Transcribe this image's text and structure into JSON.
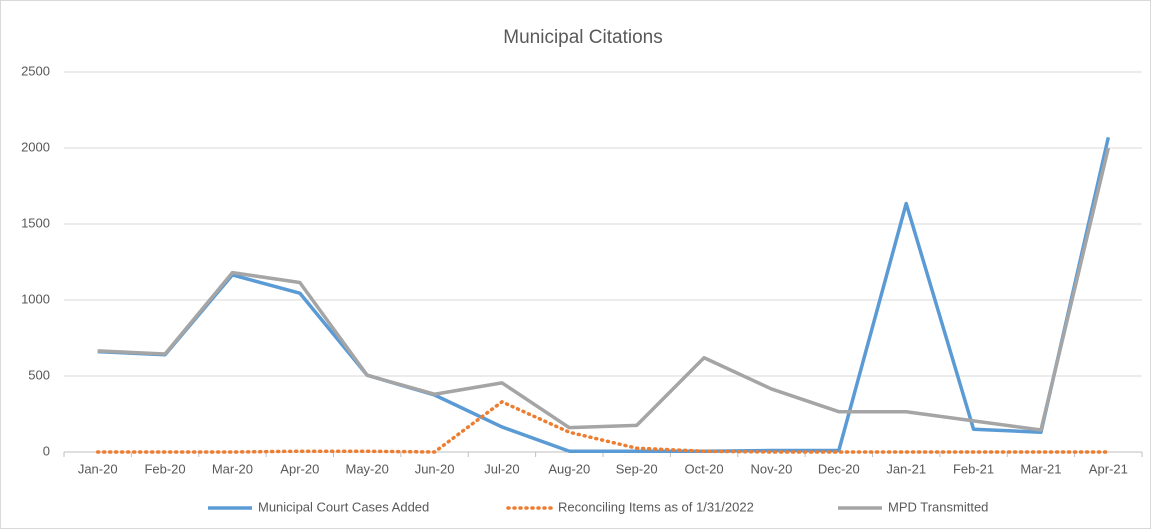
{
  "chart_data": {
    "type": "line",
    "title": "Municipal Citations",
    "categories": [
      "Jan-20",
      "Feb-20",
      "Mar-20",
      "Apr-20",
      "May-20",
      "Jun-20",
      "Jul-20",
      "Aug-20",
      "Sep-20",
      "Oct-20",
      "Nov-20",
      "Dec-20",
      "Jan-21",
      "Feb-21",
      "Mar-21",
      "Apr-21"
    ],
    "series": [
      {
        "name": "Municipal Court Cases Added",
        "color": "#5b9bd5",
        "line_style": "solid",
        "values": [
          660,
          640,
          1165,
          1045,
          505,
          375,
          165,
          5,
          5,
          5,
          10,
          10,
          1635,
          150,
          130,
          2070
        ]
      },
      {
        "name": "Reconciling Items as of 1/31/2022",
        "color": "#ed7d31",
        "line_style": "dotted",
        "values": [
          0,
          0,
          0,
          5,
          5,
          0,
          330,
          130,
          25,
          5,
          0,
          0,
          0,
          0,
          0,
          0
        ]
      },
      {
        "name": "MPD Transmitted",
        "color": "#a5a5a5",
        "line_style": "solid",
        "values": [
          665,
          645,
          1180,
          1115,
          505,
          380,
          455,
          160,
          175,
          620,
          415,
          265,
          265,
          205,
          145,
          2000
        ]
      }
    ],
    "ylim": [
      0,
      2500
    ],
    "yticks": [
      0,
      500,
      1000,
      1500,
      2000,
      2500
    ],
    "grid": true,
    "legend": "bottom"
  }
}
